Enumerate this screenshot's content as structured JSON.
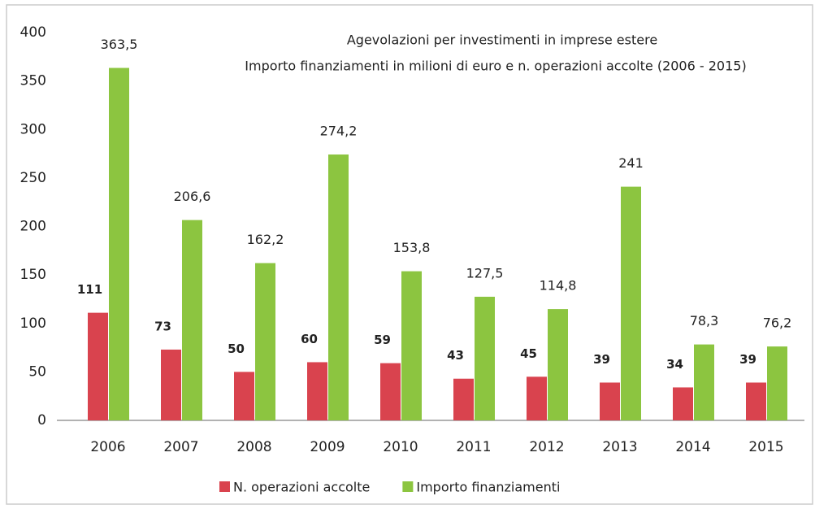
{
  "chart_data": {
    "type": "bar",
    "title": "Agevolazioni per investimenti in imprese estere",
    "subtitle": "Importo finanziamenti in milioni di euro e n. operazioni accolte (2006 - 2015)",
    "categories": [
      "2006",
      "2007",
      "2008",
      "2009",
      "2010",
      "2011",
      "2012",
      "2013",
      "2014",
      "2015"
    ],
    "series": [
      {
        "name": "N. operazioni accolte",
        "color": "#d9434e",
        "values": [
          111,
          73,
          50,
          60,
          59,
          43,
          45,
          39,
          34,
          39
        ]
      },
      {
        "name": "Importo finanziamenti",
        "color": "#8cc540",
        "values": [
          363.5,
          206.6,
          162.2,
          274.2,
          153.8,
          127.5,
          114.8,
          241,
          78.3,
          76.2
        ],
        "value_labels": [
          "363,5",
          "206,6",
          "162,2",
          "274,2",
          "153,8",
          "127,5",
          "114,8",
          "241",
          "78,3",
          "76,2"
        ]
      }
    ],
    "ylim": [
      0,
      400
    ],
    "yticks": [
      0,
      50,
      100,
      150,
      200,
      250,
      300,
      350,
      400
    ],
    "grid": false,
    "legend": "bottom"
  }
}
